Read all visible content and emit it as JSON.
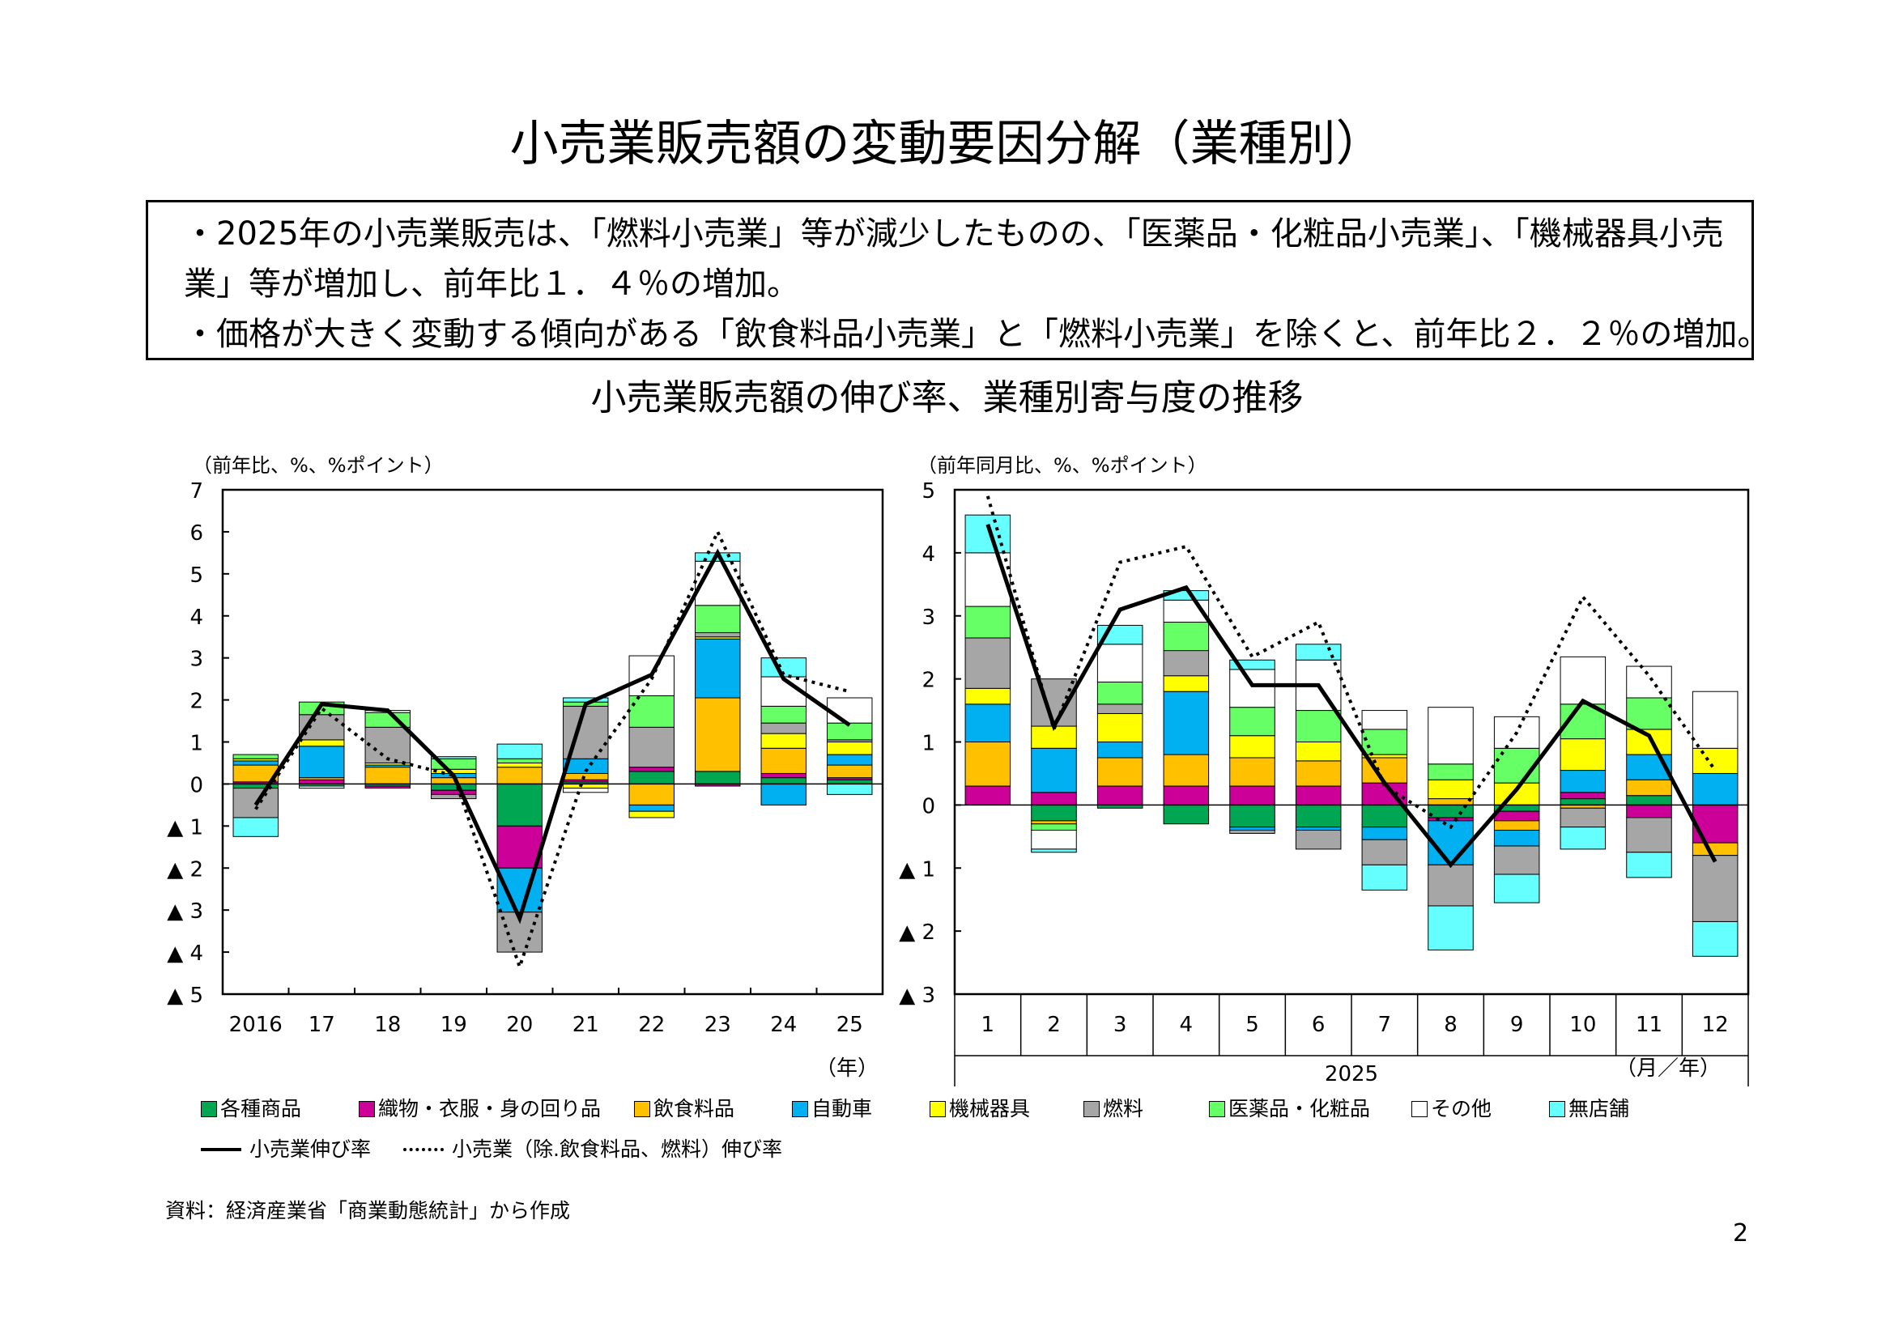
{
  "page": {
    "title": "小売業販売額の変動要因分解（業種別）",
    "summary": [
      "・2025年の小売業販売は、「燃料小売業」等が減少したものの、「医薬品・化粧品小売業」、「機械器具小売",
      "業」等が増加し、前年比１．４％の増加。",
      "・価格が大きく変動する傾向がある「飲食料品小売業」と「燃料小売業」を除くと、前年比２．２％の増加。"
    ],
    "chart_subtitle": "小売業販売額の伸び率、業種別寄与度の推移",
    "source": "資料：経済産業省「商業動態統計」から作成",
    "page_number": "2"
  },
  "colors": {
    "各種商品": "#00A651",
    "織物・衣服・身の回り品": "#CC0099",
    "飲食料品": "#FFC000",
    "自動車": "#00B0F0",
    "機械器具": "#FFFF00",
    "燃料": "#A6A6A6",
    "医薬品・化粧品": "#66FF66",
    "その他": "#FFFFFF",
    "無店舗": "#66FFFF"
  },
  "legend": {
    "categories": [
      "各種商品",
      "織物・衣服・身の回り品",
      "飲食料品",
      "自動車",
      "機械器具",
      "燃料",
      "医薬品・化粧品",
      "その他",
      "無店舗"
    ],
    "line_solid": "小売業伸び率",
    "line_dotted": "小売業（除.飲食料品、燃料）伸び率"
  },
  "chart_data": [
    {
      "type": "bar",
      "stacked": true,
      "unit_label": "（前年比、%、%ポイント）",
      "x_unit_label": "（年）",
      "categories": [
        "2016",
        "17",
        "18",
        "19",
        "20",
        "21",
        "22",
        "23",
        "24",
        "25"
      ],
      "ylim": [
        -5,
        7
      ],
      "yticks": [
        7,
        6,
        5,
        4,
        3,
        2,
        1,
        0,
        -1,
        -2,
        -3,
        -4,
        -5
      ],
      "ytick_labels": [
        "7",
        "6",
        "5",
        "4",
        "3",
        "2",
        "1",
        "0",
        "▲ 1",
        "▲ 2",
        "▲ 3",
        "▲ 4",
        "▲ 5"
      ],
      "series": [
        {
          "name": "各種商品",
          "values": [
            -0.1,
            -0.05,
            -0.05,
            -0.15,
            -1.0,
            0.05,
            0.3,
            0.3,
            0.15,
            0.1
          ]
        },
        {
          "name": "織物・衣服・身の回り品",
          "values": [
            0.05,
            0.1,
            -0.05,
            -0.1,
            -1.0,
            0.05,
            0.1,
            -0.05,
            0.1,
            0.05
          ]
        },
        {
          "name": "飲食料品",
          "values": [
            0.4,
            0.05,
            0.4,
            0.15,
            0.4,
            0.15,
            -0.5,
            1.75,
            0.6,
            0.3
          ]
        },
        {
          "name": "自動車",
          "values": [
            0.1,
            0.75,
            0.05,
            0.1,
            -1.05,
            0.35,
            -0.15,
            1.4,
            -0.5,
            0.25
          ]
        },
        {
          "name": "機械器具",
          "values": [
            0.05,
            0.15,
            0.05,
            0.1,
            0.1,
            -0.1,
            -0.15,
            0.05,
            0.35,
            0.3
          ]
        },
        {
          "name": "燃料",
          "values": [
            -0.7,
            0.6,
            0.85,
            -0.1,
            -0.95,
            1.25,
            0.95,
            0.1,
            0.25,
            0.05
          ]
        },
        {
          "name": "医薬品・化粧品",
          "values": [
            0.1,
            0.3,
            0.35,
            0.25,
            0.1,
            0.1,
            0.75,
            0.65,
            0.4,
            0.4
          ]
        },
        {
          "name": "その他",
          "values": [
            0,
            -0.05,
            0.05,
            0,
            0,
            -0.1,
            0.95,
            1.05,
            0.7,
            0.6
          ]
        },
        {
          "name": "無店舗",
          "values": [
            -0.45,
            0,
            0,
            0.05,
            0.35,
            0.1,
            0,
            0.2,
            0.45,
            -0.25
          ]
        }
      ],
      "lines": [
        {
          "name": "小売業伸び率",
          "style": "solid",
          "values": [
            -0.5,
            1.9,
            1.75,
            0.2,
            -3.2,
            1.9,
            2.6,
            5.5,
            2.5,
            1.4
          ]
        },
        {
          "name": "小売業（除.飲食料品、燃料）伸び率",
          "style": "dotted",
          "values": [
            -0.6,
            1.8,
            0.6,
            0.2,
            -4.35,
            0.3,
            2.5,
            6.0,
            2.6,
            2.2
          ]
        }
      ]
    },
    {
      "type": "bar",
      "stacked": true,
      "unit_label": "（前年同月比、%、%ポイント）",
      "x_unit_label": "（月／年）",
      "year_label": "2025",
      "categories": [
        "1",
        "2",
        "3",
        "4",
        "5",
        "6",
        "7",
        "8",
        "9",
        "10",
        "11",
        "12"
      ],
      "ylim": [
        -3,
        5
      ],
      "yticks": [
        5,
        4,
        3,
        2,
        1,
        0,
        -1,
        -2,
        -3
      ],
      "ytick_labels": [
        "5",
        "4",
        "3",
        "2",
        "1",
        "0",
        "▲ 1",
        "▲ 2",
        "▲ 3"
      ],
      "series": [
        {
          "name": "各種商品",
          "values": [
            0,
            -0.25,
            -0.05,
            -0.3,
            -0.35,
            -0.35,
            -0.35,
            -0.2,
            -0.1,
            0.1,
            0.15,
            0
          ]
        },
        {
          "name": "織物・衣服・身の回り品",
          "values": [
            0.3,
            0.2,
            0.3,
            0.3,
            0.3,
            0.3,
            0.35,
            -0.05,
            -0.15,
            0.1,
            -0.2,
            -0.6
          ]
        },
        {
          "name": "飲食料品",
          "values": [
            0.7,
            -0.05,
            0.45,
            0.5,
            0.45,
            0.4,
            0.4,
            0.1,
            -0.15,
            -0.05,
            0.25,
            -0.2
          ]
        },
        {
          "name": "自動車",
          "values": [
            0.6,
            0.7,
            0.25,
            1.0,
            -0.05,
            -0.05,
            -0.2,
            -0.7,
            -0.25,
            0.35,
            0.4,
            0.5
          ]
        },
        {
          "name": "機械器具",
          "values": [
            0.25,
            0.35,
            0.45,
            0.25,
            0.35,
            0.3,
            0.05,
            0.3,
            0.35,
            0.5,
            0.4,
            0.4
          ]
        },
        {
          "name": "燃料",
          "values": [
            0.8,
            0.75,
            0.15,
            0.4,
            -0.05,
            -0.3,
            -0.4,
            -0.65,
            -0.45,
            -0.3,
            -0.55,
            -1.05
          ]
        },
        {
          "name": "医薬品・化粧品",
          "values": [
            0.5,
            -0.1,
            0.35,
            0.45,
            0.45,
            0.5,
            0.4,
            0.25,
            0.55,
            0.55,
            0.5,
            0
          ]
        },
        {
          "name": "その他",
          "values": [
            0.85,
            -0.3,
            0.6,
            0.35,
            0.6,
            0.8,
            0.3,
            0.9,
            0.5,
            0.75,
            0.5,
            0.9
          ]
        },
        {
          "name": "無店舗",
          "values": [
            0.6,
            -0.05,
            0.3,
            0.15,
            0.15,
            0.25,
            -0.4,
            -0.7,
            -0.45,
            -0.35,
            -0.4,
            -0.55
          ]
        }
      ],
      "lines": [
        {
          "name": "小売業伸び率",
          "style": "solid",
          "values": [
            4.45,
            1.25,
            3.1,
            3.45,
            1.9,
            1.9,
            0.35,
            -0.95,
            0.25,
            1.65,
            1.1,
            -0.9
          ]
        },
        {
          "name": "小売業（除.飲食料品、燃料）伸び率",
          "style": "dotted",
          "values": [
            4.9,
            1.2,
            3.85,
            4.1,
            2.35,
            2.9,
            0.3,
            -0.35,
            1.15,
            3.3,
            2.05,
            0.55
          ]
        }
      ]
    }
  ]
}
